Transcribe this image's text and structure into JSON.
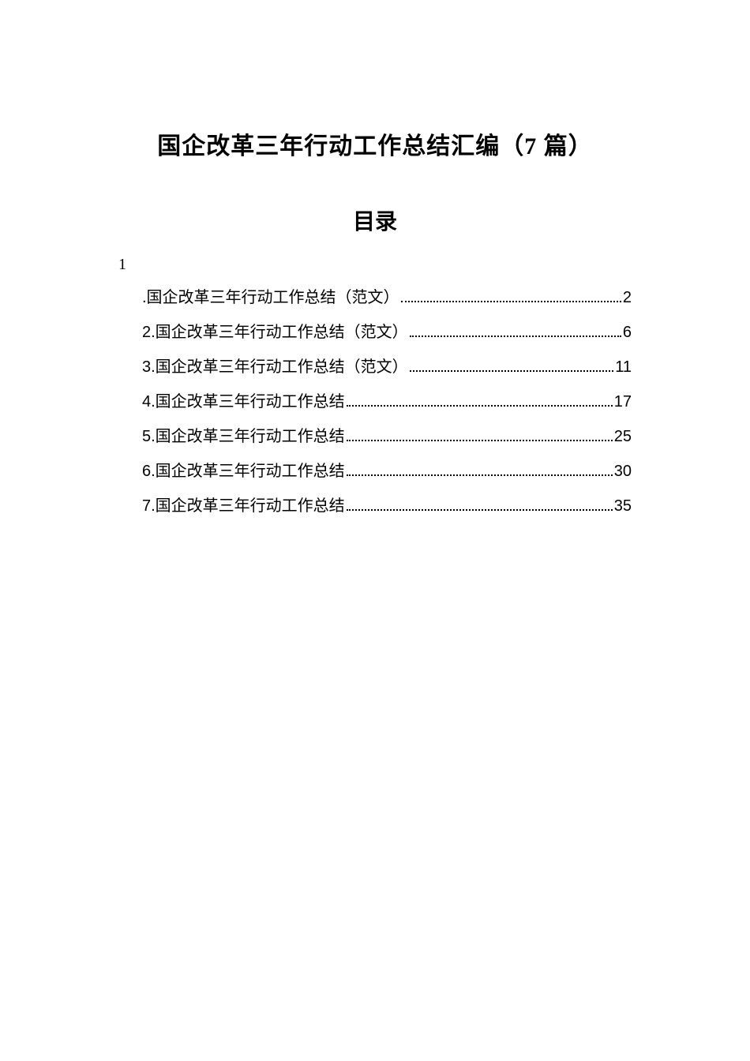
{
  "title": "国企改革三年行动工作总结汇编（7 篇）",
  "subtitle": "目录",
  "one_marker": "1",
  "toc": {
    "entries": [
      {
        "label": ".国企改革三年行动工作总结（范文）",
        "page": "2"
      },
      {
        "label": "2.国企改革三年行动工作总结（范文）",
        "page": "6"
      },
      {
        "label": "3.国企改革三年行动工作总结（范文）",
        "page": "11"
      },
      {
        "label": "4.国企改革三年行动工作总结",
        "page": "17"
      },
      {
        "label": "5.国企改革三年行动工作总结",
        "page": "25"
      },
      {
        "label": "6.国企改革三年行动工作总结",
        "page": "30"
      },
      {
        "label": "7.国企改革三年行动工作总结",
        "page": "35"
      }
    ]
  }
}
